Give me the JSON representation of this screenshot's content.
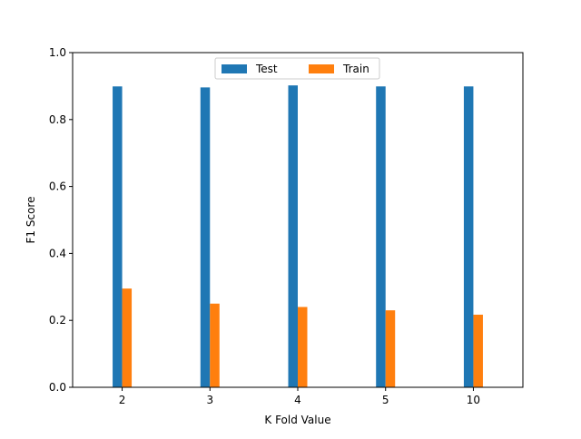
{
  "chart_data": {
    "type": "bar",
    "title": "",
    "xlabel": "K Fold Value",
    "ylabel": "F1 Score",
    "categories": [
      "2",
      "3",
      "4",
      "5",
      "10"
    ],
    "series": [
      {
        "name": "Test",
        "color": "#1f77b4",
        "values": [
          0.899,
          0.896,
          0.902,
          0.899,
          0.899
        ]
      },
      {
        "name": "Train",
        "color": "#ff7f0e",
        "values": [
          0.295,
          0.25,
          0.24,
          0.23,
          0.217
        ]
      }
    ],
    "ylim": [
      0,
      1.0
    ],
    "yticks": [
      "0.0",
      "0.2",
      "0.4",
      "0.6",
      "0.8",
      "1.0"
    ],
    "grid": false,
    "legend": {
      "placement": "top-center",
      "columns": 2
    }
  }
}
